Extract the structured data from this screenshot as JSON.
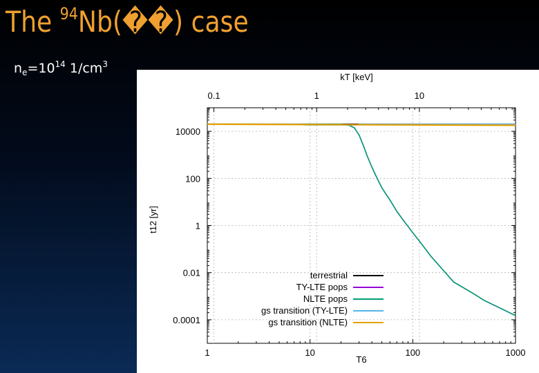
{
  "title": {
    "prefix": "The ",
    "mass_number": "94",
    "element": "Nb(",
    "garbled": "��",
    "suffix": ") case"
  },
  "density": {
    "symbol": "n",
    "subscript": "e",
    "equals": "=10",
    "exponent": "14",
    "unit": " 1/cm",
    "unit_exponent": "3"
  },
  "chart_data": {
    "type": "line",
    "xlabel": "T6",
    "ylabel": "t12 [yr]",
    "x2label": "kT [keV]",
    "xscale": "log",
    "yscale": "log",
    "xlim": [
      1,
      1000
    ],
    "ylim": [
      1e-05,
      100000
    ],
    "x2lim": [
      0.0862,
      86.2
    ],
    "x_ticks": [
      1,
      10,
      100,
      1000
    ],
    "x_tick_labels": [
      "1",
      "10",
      "100",
      "1000"
    ],
    "x2_ticks": [
      0.1,
      1,
      10
    ],
    "x2_tick_labels": [
      "0.1",
      "1",
      "10"
    ],
    "y_ticks": [
      0.0001,
      0.01,
      1,
      100,
      10000
    ],
    "y_tick_labels": [
      "0.0001",
      "0.01",
      "1",
      "100",
      "10000"
    ],
    "grid": true,
    "legend_position": "bottom-right",
    "series": [
      {
        "name": "terrestrial",
        "color": "#000000",
        "points": [
          [
            1,
            20300
          ],
          [
            1000,
            20300
          ]
        ]
      },
      {
        "name": "TY-LTE pops",
        "color": "#9400d3",
        "points": [
          [
            1,
            20000
          ],
          [
            20,
            20000
          ],
          [
            24,
            18000
          ],
          [
            27,
            14000
          ],
          [
            30,
            7000
          ],
          [
            33,
            2500
          ],
          [
            36,
            900
          ],
          [
            40,
            300
          ],
          [
            45,
            100
          ],
          [
            50,
            40
          ],
          [
            60,
            12
          ],
          [
            70,
            4
          ],
          [
            80,
            1.8
          ],
          [
            100,
            0.5
          ],
          [
            120,
            0.18
          ],
          [
            150,
            0.05
          ],
          [
            200,
            0.012
          ],
          [
            250,
            0.004
          ],
          [
            300,
            0.0025
          ],
          [
            400,
            0.0012
          ],
          [
            500,
            0.00065
          ],
          [
            700,
            0.00032
          ],
          [
            1000,
            0.00015
          ]
        ]
      },
      {
        "name": "NLTE pops",
        "color": "#009e73",
        "points": [
          [
            1,
            20000
          ],
          [
            20,
            20000
          ],
          [
            24,
            18000
          ],
          [
            27,
            14000
          ],
          [
            30,
            7000
          ],
          [
            33,
            2500
          ],
          [
            36,
            900
          ],
          [
            40,
            300
          ],
          [
            45,
            100
          ],
          [
            50,
            40
          ],
          [
            60,
            12
          ],
          [
            70,
            4
          ],
          [
            80,
            1.8
          ],
          [
            100,
            0.5
          ],
          [
            120,
            0.18
          ],
          [
            150,
            0.05
          ],
          [
            200,
            0.012
          ],
          [
            250,
            0.004
          ],
          [
            300,
            0.0025
          ],
          [
            400,
            0.0012
          ],
          [
            500,
            0.00065
          ],
          [
            700,
            0.00032
          ],
          [
            1000,
            0.00015
          ]
        ]
      },
      {
        "name": "gs transition (TY-LTE)",
        "color": "#56b4e9",
        "points": [
          [
            1,
            20000
          ],
          [
            8,
            20000
          ],
          [
            9,
            18500
          ],
          [
            28,
            18500
          ],
          [
            30,
            20000
          ],
          [
            1000,
            20000
          ]
        ]
      },
      {
        "name": "gs transition (NLTE)",
        "color": "#e69f00",
        "points": [
          [
            1,
            20000
          ],
          [
            1000,
            18000
          ]
        ]
      }
    ]
  }
}
